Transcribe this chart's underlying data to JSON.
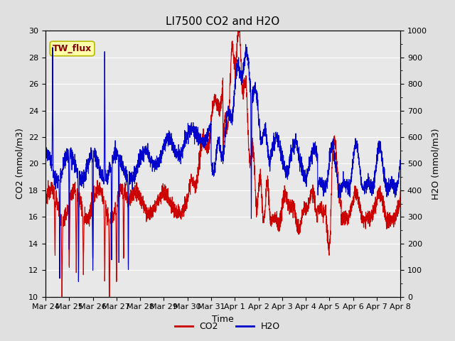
{
  "title": "LI7500 CO2 and H2O",
  "xlabel": "Time",
  "ylabel_left": "CO2 (mmol/m3)",
  "ylabel_right": "H2O (mmol/m3)",
  "ylim_left": [
    10,
    30
  ],
  "ylim_right": [
    0,
    1000
  ],
  "yticks_left": [
    10,
    12,
    14,
    16,
    18,
    20,
    22,
    24,
    26,
    28,
    30
  ],
  "yticks_right": [
    0,
    100,
    200,
    300,
    400,
    500,
    600,
    700,
    800,
    900,
    1000
  ],
  "xtick_labels": [
    "Mar 24",
    "Mar 25",
    "Mar 26",
    "Mar 27",
    "Mar 28",
    "Mar 29",
    "Mar 30",
    "Mar 31",
    "Apr 1",
    "Apr 2",
    "Apr 3",
    "Apr 4",
    "Apr 5",
    "Apr 6",
    "Apr 7",
    "Apr 8"
  ],
  "co2_color": "#cc0000",
  "h2o_color": "#0000cc",
  "fig_bg_color": "#e0e0e0",
  "plot_bg_color": "#e8e8e8",
  "grid_color": "#ffffff",
  "title_fontsize": 11,
  "axis_fontsize": 9,
  "tick_fontsize": 8,
  "legend_label_co2": "CO2",
  "legend_label_h2o": "H2O",
  "annotation_text": "TW_flux",
  "annotation_bg": "#ffffaa",
  "annotation_border": "#bbbb00",
  "n_days": 15,
  "n_points": 3000
}
